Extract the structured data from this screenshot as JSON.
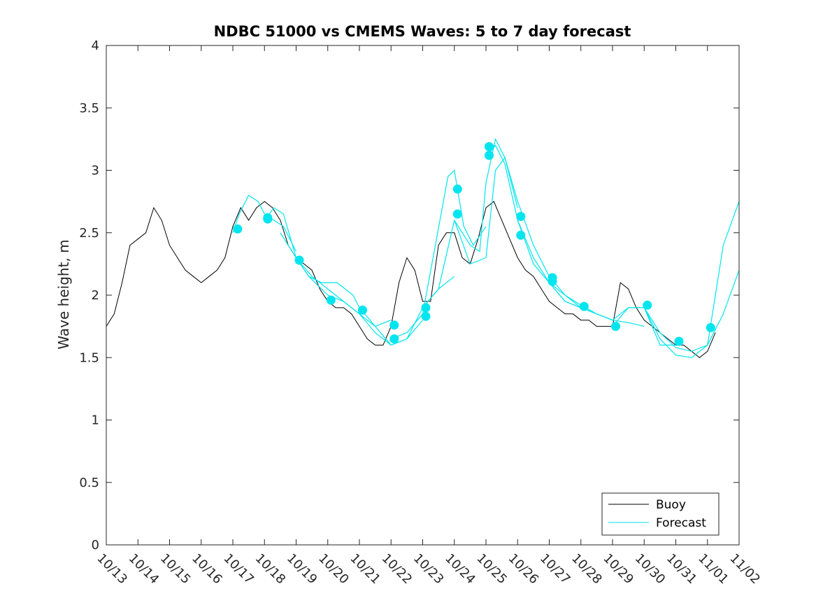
{
  "chart_data": {
    "type": "line",
    "title": "NDBC 51000 vs CMEMS Waves: 5 to 7 day forecast",
    "xlabel": "",
    "ylabel": "Wave height, m",
    "xlim": [
      0,
      20
    ],
    "ylim": [
      0,
      4
    ],
    "yticks": [
      0,
      0.5,
      1,
      1.5,
      2,
      2.5,
      3,
      3.5,
      4
    ],
    "ytick_labels": [
      "0",
      "0.5",
      "1",
      "1.5",
      "2",
      "2.5",
      "3",
      "3.5",
      "4"
    ],
    "xticks": [
      0,
      1,
      2,
      3,
      4,
      5,
      6,
      7,
      8,
      9,
      10,
      11,
      12,
      13,
      14,
      15,
      16,
      17,
      18,
      19,
      20
    ],
    "xtick_labels": [
      "10/13",
      "10/14",
      "10/15",
      "10/16",
      "10/17",
      "10/18",
      "10/19",
      "10/20",
      "10/21",
      "10/22",
      "10/23",
      "10/24",
      "10/25",
      "10/26",
      "10/27",
      "10/28",
      "10/29",
      "10/30",
      "10/31",
      "11/01",
      "11/02"
    ],
    "x_units": "days since 10/13",
    "legend": {
      "position": "bottom-right",
      "entries": [
        {
          "label": "Buoy",
          "color": "#000000"
        },
        {
          "label": "Forecast",
          "color": "#00e5ee"
        }
      ]
    },
    "series": [
      {
        "name": "Buoy",
        "color": "#000000",
        "x": [
          0,
          0.25,
          0.5,
          0.75,
          1,
          1.25,
          1.5,
          1.75,
          2,
          2.25,
          2.5,
          2.75,
          3,
          3.25,
          3.5,
          3.75,
          4,
          4.25,
          4.5,
          4.75,
          5,
          5.25,
          5.5,
          5.75,
          6,
          6.25,
          6.5,
          6.75,
          7,
          7.25,
          7.5,
          7.75,
          8,
          8.25,
          8.5,
          8.75,
          9,
          9.25,
          9.5,
          9.75,
          10,
          10.25,
          10.5,
          10.75,
          11,
          11.25,
          11.5,
          11.75,
          12,
          12.25,
          12.5,
          12.75,
          13,
          13.25,
          13.5,
          13.75,
          14,
          14.25,
          14.5,
          14.75,
          15,
          15.25,
          15.5,
          15.75,
          16,
          16.25,
          16.5,
          16.75,
          17,
          17.25,
          17.5,
          17.75,
          18,
          18.25,
          18.5,
          18.75,
          19,
          19.25
        ],
        "values": [
          1.75,
          1.85,
          2.1,
          2.4,
          2.45,
          2.5,
          2.7,
          2.6,
          2.4,
          2.3,
          2.2,
          2.15,
          2.1,
          2.15,
          2.2,
          2.3,
          2.55,
          2.7,
          2.6,
          2.7,
          2.75,
          2.7,
          2.6,
          2.4,
          2.3,
          2.25,
          2.2,
          2.05,
          1.95,
          1.9,
          1.9,
          1.85,
          1.75,
          1.65,
          1.6,
          1.6,
          1.75,
          2.1,
          2.3,
          2.2,
          1.95,
          1.95,
          2.4,
          2.5,
          2.5,
          2.3,
          2.25,
          2.45,
          2.7,
          2.75,
          2.6,
          2.45,
          2.3,
          2.2,
          2.15,
          2.05,
          1.95,
          1.9,
          1.85,
          1.85,
          1.8,
          1.8,
          1.75,
          1.75,
          1.75,
          2.1,
          2.05,
          1.9,
          1.8,
          1.75,
          1.7,
          1.65,
          1.6,
          1.6,
          1.55,
          1.5,
          1.55,
          1.7
        ]
      },
      {
        "name": "Forecast",
        "color": "#00e5ee",
        "runs": [
          {
            "x": [
              4,
              4.2,
              4.5,
              4.8,
              5,
              5.3,
              5.6,
              6
            ],
            "values": [
              2.5,
              2.65,
              2.8,
              2.75,
              2.65,
              2.6,
              2.55,
              2.35
            ]
          },
          {
            "x": [
              5,
              5.3,
              5.6,
              6,
              6.4,
              6.8,
              7
            ],
            "values": [
              2.6,
              2.7,
              2.65,
              2.3,
              2.15,
              2.05,
              2.0
            ]
          },
          {
            "x": [
              5.5,
              6,
              6.4,
              6.8,
              7.3,
              7.8,
              8
            ],
            "values": [
              2.5,
              2.3,
              2.15,
              2.1,
              2.1,
              2.0,
              1.9
            ]
          },
          {
            "x": [
              6,
              6.5,
              7,
              7.5,
              8,
              8.5,
              9
            ],
            "values": [
              2.3,
              2.15,
              2.05,
              1.95,
              1.85,
              1.75,
              1.8
            ]
          },
          {
            "x": [
              7,
              7.5,
              8,
              8.5,
              9,
              9.5,
              10
            ],
            "values": [
              2.0,
              1.95,
              1.85,
              1.7,
              1.6,
              1.65,
              1.8
            ]
          },
          {
            "x": [
              8,
              8.5,
              9,
              9.5,
              10,
              10.5,
              11
            ],
            "values": [
              1.9,
              1.75,
              1.6,
              1.65,
              1.9,
              2.05,
              2.15
            ]
          },
          {
            "x": [
              9,
              9.5,
              10,
              10.4,
              10.8,
              11,
              11.3,
              11.6,
              12
            ],
            "values": [
              1.65,
              1.7,
              1.85,
              2.4,
              2.95,
              3.0,
              2.55,
              2.4,
              2.55
            ]
          },
          {
            "x": [
              10,
              10.5,
              11,
              11.5,
              11.8,
              12,
              12.3,
              12.6,
              13
            ],
            "values": [
              1.9,
              2.05,
              2.6,
              2.4,
              2.35,
              2.9,
              3.25,
              3.1,
              2.7
            ]
          },
          {
            "x": [
              11,
              11.5,
              12,
              12.3,
              12.6,
              13,
              13.5,
              14,
              14.5,
              15
            ],
            "values": [
              2.6,
              2.25,
              2.3,
              3.0,
              3.1,
              2.75,
              2.4,
              2.15,
              2.0,
              1.9
            ]
          },
          {
            "x": [
              12,
              12.3,
              12.6,
              13,
              13.5,
              14,
              14.5,
              15,
              15.5,
              16
            ],
            "values": [
              3.1,
              3.2,
              3.05,
              2.6,
              2.3,
              2.1,
              1.95,
              1.9,
              1.85,
              1.8
            ]
          },
          {
            "x": [
              13,
              13.5,
              14,
              14.5,
              15,
              15.5,
              16,
              16.5,
              17
            ],
            "values": [
              2.6,
              2.25,
              2.1,
              2.0,
              1.92,
              1.85,
              1.8,
              1.78,
              1.75
            ]
          },
          {
            "x": [
              14,
              14.5,
              15,
              15.5,
              16,
              16.5,
              17,
              17.5,
              18
            ],
            "values": [
              2.1,
              1.95,
              1.9,
              1.85,
              1.8,
              1.9,
              1.9,
              1.6,
              1.6
            ]
          },
          {
            "x": [
              16,
              16.5,
              17,
              17.5,
              18,
              18.5,
              19,
              19.5,
              20
            ],
            "values": [
              1.75,
              1.9,
              1.9,
              1.65,
              1.52,
              1.5,
              1.6,
              2.4,
              2.75
            ]
          },
          {
            "x": [
              17,
              17.5,
              18,
              18.5,
              19,
              19.5,
              20
            ],
            "values": [
              1.9,
              1.7,
              1.58,
              1.55,
              1.6,
              1.85,
              2.2
            ]
          }
        ],
        "markers": [
          {
            "x": 4.15,
            "y": 2.53
          },
          {
            "x": 5.1,
            "y": 2.62
          },
          {
            "x": 5.1,
            "y": 2.61
          },
          {
            "x": 6.1,
            "y": 2.28
          },
          {
            "x": 7.1,
            "y": 1.96
          },
          {
            "x": 8.1,
            "y": 1.88
          },
          {
            "x": 9.1,
            "y": 1.76
          },
          {
            "x": 9.1,
            "y": 1.65
          },
          {
            "x": 10.1,
            "y": 1.9
          },
          {
            "x": 10.1,
            "y": 1.83
          },
          {
            "x": 11.1,
            "y": 2.85
          },
          {
            "x": 11.1,
            "y": 2.65
          },
          {
            "x": 12.1,
            "y": 3.19
          },
          {
            "x": 12.1,
            "y": 3.12
          },
          {
            "x": 13.1,
            "y": 2.63
          },
          {
            "x": 13.1,
            "y": 2.48
          },
          {
            "x": 14.1,
            "y": 2.14
          },
          {
            "x": 14.1,
            "y": 2.11
          },
          {
            "x": 15.1,
            "y": 1.91
          },
          {
            "x": 16.1,
            "y": 1.75
          },
          {
            "x": 17.1,
            "y": 1.92
          },
          {
            "x": 18.1,
            "y": 1.63
          },
          {
            "x": 19.1,
            "y": 1.74
          }
        ]
      }
    ]
  }
}
